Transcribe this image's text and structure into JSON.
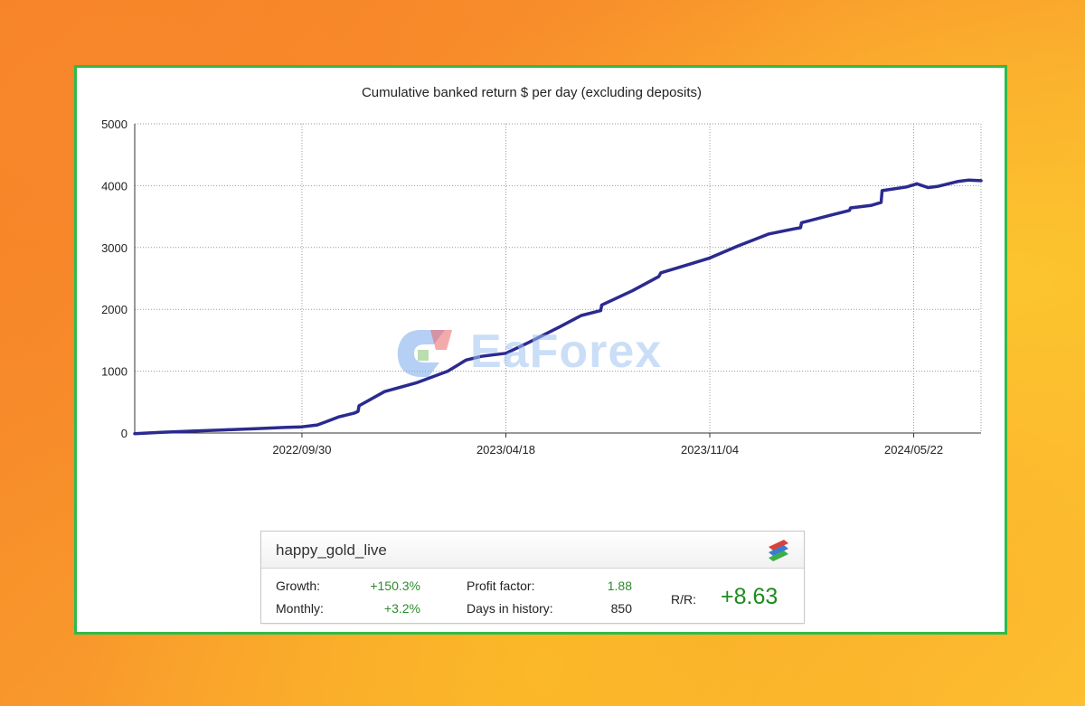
{
  "chart_data": {
    "type": "line",
    "title": "Cumulative banked return $ per day (excluding deposits)",
    "xlabel": "",
    "ylabel": "",
    "x_ticks": [
      "2022/09/30",
      "2023/04/18",
      "2023/11/04",
      "2024/05/22"
    ],
    "y_ticks": [
      0,
      1000,
      2000,
      3000,
      4000,
      5000
    ],
    "xlim": [
      "2022/04/19",
      "2024/07/27"
    ],
    "ylim": [
      0,
      5000
    ],
    "grid": true,
    "series": [
      {
        "color": "#2b2a8f",
        "x": [
          "2022/04/19",
          "2022/05/15",
          "2022/06/15",
          "2022/07/15",
          "2022/08/15",
          "2022/09/15",
          "2022/09/30",
          "2022/10/15",
          "2022/10/25",
          "2022/11/05",
          "2022/11/20",
          "2022/11/24",
          "2022/11/25",
          "2022/12/20",
          "2023/01/20",
          "2023/02/20",
          "2023/03/10",
          "2023/03/25",
          "2023/04/18",
          "2023/05/10",
          "2023/06/10",
          "2023/07/01",
          "2023/07/20",
          "2023/07/21",
          "2023/08/20",
          "2023/09/15",
          "2023/09/17",
          "2023/10/15",
          "2023/11/04",
          "2023/12/01",
          "2024/01/01",
          "2024/01/25",
          "2024/02/01",
          "2024/02/02",
          "2024/03/01",
          "2024/03/20",
          "2024/03/21",
          "2024/04/10",
          "2024/04/20",
          "2024/04/21",
          "2024/05/15",
          "2024/05/25",
          "2024/06/05",
          "2024/06/15",
          "2024/07/05",
          "2024/07/15",
          "2024/07/27"
        ],
        "y": [
          -10,
          10,
          30,
          50,
          70,
          90,
          100,
          130,
          190,
          260,
          320,
          350,
          440,
          670,
          810,
          1000,
          1180,
          1240,
          1290,
          1460,
          1720,
          1900,
          1980,
          2070,
          2300,
          2530,
          2590,
          2730,
          2830,
          3020,
          3220,
          3300,
          3320,
          3400,
          3520,
          3600,
          3640,
          3680,
          3730,
          3920,
          3980,
          4030,
          3970,
          3990,
          4070,
          4090,
          4080
        ]
      }
    ]
  },
  "watermark": {
    "text": "EaForex"
  },
  "stats": {
    "account_name": "happy_gold_live",
    "growth_label": "Growth:",
    "growth_value": "+150.3%",
    "monthly_label": "Monthly:",
    "monthly_value": "+3.2%",
    "profit_factor_label": "Profit factor:",
    "profit_factor_value": "1.88",
    "days_label": "Days in history:",
    "days_value": "850",
    "rr_label": "R/R:",
    "rr_value": "+8.63",
    "colors": {
      "positive": "#2e8b2e",
      "rr": "#1c8c1c"
    }
  }
}
